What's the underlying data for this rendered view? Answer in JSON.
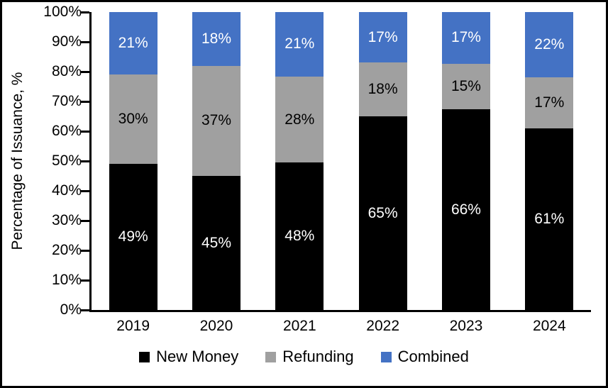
{
  "colors": {
    "new_money": "#000000",
    "refunding": "#A0A0A0",
    "combined": "#4472C4",
    "axis": "#000000",
    "background": "#FFFFFF",
    "border": "#000000"
  },
  "chart_data": {
    "type": "bar",
    "stacked": true,
    "title": "",
    "xlabel": "",
    "ylabel": "Percentage of Issuance, %",
    "categories": [
      "2019",
      "2020",
      "2021",
      "2022",
      "2023",
      "2024"
    ],
    "series": [
      {
        "name": "New Money",
        "color": "#000000",
        "label_color": "#FFFFFF",
        "values": [
          49,
          45,
          48,
          65,
          66,
          61
        ]
      },
      {
        "name": "Refunding",
        "color": "#A0A0A0",
        "label_color": "#000000",
        "values": [
          30,
          37,
          28,
          18,
          15,
          17
        ]
      },
      {
        "name": "Combined",
        "color": "#4472C4",
        "label_color": "#FFFFFF",
        "values": [
          21,
          18,
          21,
          17,
          17,
          22
        ]
      }
    ],
    "value_suffix": "%",
    "ylim": [
      0,
      100
    ],
    "y_ticks": [
      "0%",
      "10%",
      "20%",
      "30%",
      "40%",
      "50%",
      "60%",
      "70%",
      "80%",
      "90%",
      "100%"
    ],
    "legend_position": "bottom",
    "grid": false
  }
}
